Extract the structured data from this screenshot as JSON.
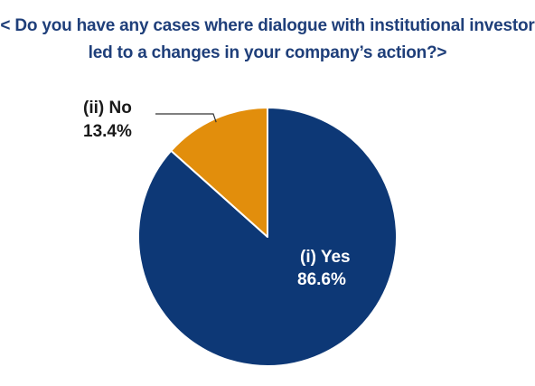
{
  "chart_data": {
    "type": "pie",
    "title_lines": [
      "< Do you have any cases where dialogue with institutional investor",
      "led to a changes in your company’s action?>"
    ],
    "slices": [
      {
        "label": "(i) Yes",
        "value": 86.6,
        "value_text": "86.6%",
        "color": "#0d3876",
        "label_color": "#ffffff"
      },
      {
        "label": "(ii) No",
        "value": 13.4,
        "value_text": "13.4%",
        "color": "#e28e0c",
        "label_color": "#1a1a1a"
      }
    ],
    "start": "12 o'clock",
    "direction": "clockwise",
    "legend": "none"
  }
}
